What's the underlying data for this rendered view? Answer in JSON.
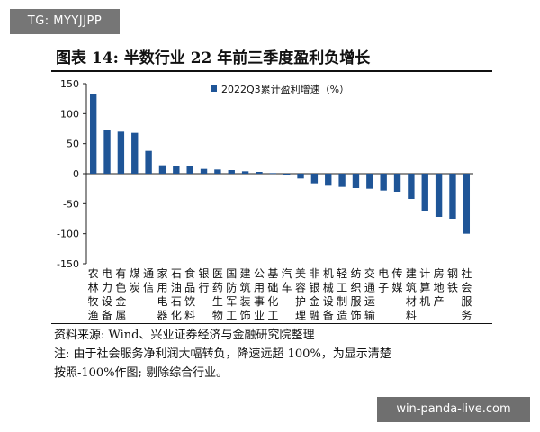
{
  "watermark_top": "TG: MYYJJPP",
  "watermark_bottom": "win-panda-live.com",
  "title": "图表 14:  半数行业 22 年前三季度盈利负增长",
  "source": "资料来源:  Wind、兴业证券经济与金融研究院整理",
  "note_line1": "注:  由于社会服务净利润大幅转负，降速远超 100%，为显示清楚",
  "note_line2": "按照-100%作图;  剔除综合行业。",
  "colors": {
    "bar": "#1f5597",
    "axis": "#222222",
    "text": "#111111"
  },
  "chart_data": {
    "type": "bar",
    "title": "",
    "xlabel": "",
    "ylabel": "",
    "ylim": [
      -150,
      150
    ],
    "yticks": [
      150,
      100,
      50,
      0,
      -50,
      -100,
      -150
    ],
    "legend": {
      "label": "2022Q3累计盈利增速（%）",
      "position": "top-center"
    },
    "categories": [
      "农林牧渔",
      "电力设备",
      "有色金属",
      "煤炭",
      "通信",
      "家用电器",
      "石油石化",
      "食品饮料",
      "银行",
      "医药生物",
      "国防军工",
      "建筑装饰",
      "公用事业",
      "基础化工",
      "汽车",
      "美容护理",
      "非银金融",
      "机械设备",
      "轻工制造",
      "纺织服饰",
      "交通运输",
      "电子",
      "传媒",
      "建筑材料",
      "计算机",
      "房地产",
      "钢铁",
      "社会服务"
    ],
    "category_label_lines": [
      [
        "农",
        "林",
        "牧",
        "渔"
      ],
      [
        "电",
        "力",
        "设",
        "备"
      ],
      [
        "有",
        "色",
        "金",
        "属"
      ],
      [
        "煤",
        "炭"
      ],
      [
        "通",
        "信"
      ],
      [
        "家",
        "用",
        "电",
        "器"
      ],
      [
        "石",
        "油",
        "石",
        "化"
      ],
      [
        "食",
        "品",
        "饮",
        "料"
      ],
      [
        "银",
        "行"
      ],
      [
        "医",
        "药",
        "生",
        "物"
      ],
      [
        "国",
        "防",
        "军",
        "工"
      ],
      [
        "建",
        "筑",
        "装",
        "饰"
      ],
      [
        "公",
        "用",
        "事",
        "业"
      ],
      [
        "基",
        "础",
        "化",
        "工"
      ],
      [
        "汽",
        "车"
      ],
      [
        "美",
        "容",
        "护",
        "理"
      ],
      [
        "非",
        "银",
        "金",
        "融"
      ],
      [
        "机",
        "械",
        "设",
        "备"
      ],
      [
        "轻",
        "工",
        "制",
        "造"
      ],
      [
        "纺",
        "织",
        "服",
        "饰"
      ],
      [
        "交",
        "通",
        "运",
        "输"
      ],
      [
        "电",
        "子"
      ],
      [
        "传",
        "媒"
      ],
      [
        "建",
        "筑",
        "材",
        "料"
      ],
      [
        "计",
        "算",
        "机"
      ],
      [
        "房",
        "地",
        "产"
      ],
      [
        "钢",
        "铁"
      ],
      [
        "社",
        "会",
        "服",
        "务"
      ]
    ],
    "values": [
      133,
      73,
      70,
      68,
      38,
      14,
      13,
      13,
      8,
      7,
      6,
      4,
      3,
      1,
      -3,
      -8,
      -16,
      -20,
      -22,
      -24,
      -25,
      -28,
      -30,
      -42,
      -62,
      -72,
      -75,
      -100
    ]
  }
}
